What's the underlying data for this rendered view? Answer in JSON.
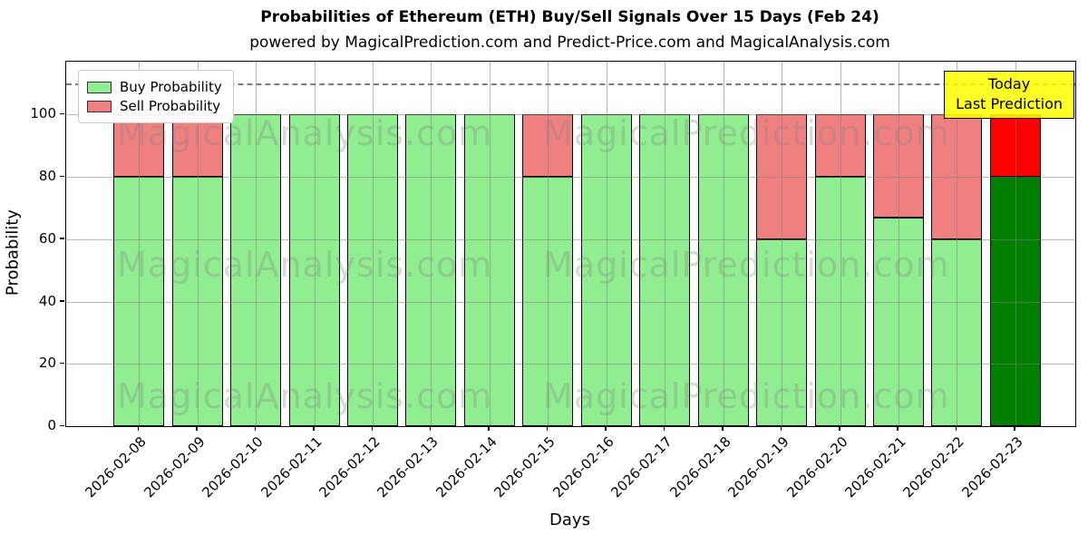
{
  "page": {
    "title": "Probabilities of Ethereum (ETH) Buy/Sell Signals Over 15 Days (Feb 24)",
    "subtitle": "powered by MagicalPrediction.com and Predict-Price.com and MagicalAnalysis.com"
  },
  "axes": {
    "xlabel": "Days",
    "ylabel": "Probability"
  },
  "legend": {
    "buy_label": "Buy Probability",
    "sell_label": "Sell Probability"
  },
  "annotation": {
    "line1": "Today",
    "line2": "Last Prediction",
    "bg_color": "#FFFF00"
  },
  "watermark": {
    "left_text": "MagicalAnalysis.com",
    "right_text": "MagicalPrediction.com"
  },
  "colors": {
    "buy": "#90EE90",
    "sell": "#F08080",
    "today_buy": "#008000",
    "today_sell": "#FF0000",
    "bar_edge": "#000000",
    "grid": "#808080"
  },
  "chart_data": {
    "type": "bar",
    "stacked": true,
    "title": "Probabilities of Ethereum (ETH) Buy/Sell Signals Over 15 Days (Feb 24)",
    "xlabel": "Days",
    "ylabel": "Probability",
    "categories": [
      "2026-02-08",
      "2026-02-09",
      "2026-02-10",
      "2026-02-11",
      "2026-02-12",
      "2026-02-13",
      "2026-02-14",
      "2026-02-15",
      "2026-02-16",
      "2026-02-17",
      "2026-02-18",
      "2026-02-19",
      "2026-02-20",
      "2026-02-21",
      "2026-02-22",
      "2026-02-23"
    ],
    "series": [
      {
        "name": "Buy Probability",
        "color": "#90EE90",
        "values": [
          80,
          80,
          100,
          100,
          100,
          100,
          100,
          80,
          100,
          100,
          100,
          60,
          80,
          67,
          60,
          80
        ]
      },
      {
        "name": "Sell Probability",
        "color": "#F08080",
        "values": [
          20,
          20,
          0,
          0,
          0,
          0,
          0,
          20,
          0,
          0,
          0,
          40,
          20,
          33,
          40,
          20
        ]
      }
    ],
    "today_index": 15,
    "today_colors": {
      "buy": "#008000",
      "sell": "#FF0000"
    },
    "ylim": [
      0,
      117
    ],
    "yticks": [
      0,
      20,
      40,
      60,
      80,
      100
    ],
    "dashed_line_y": 110,
    "grid": true,
    "legend_position": "upper left",
    "annotation": "Today Last Prediction"
  }
}
